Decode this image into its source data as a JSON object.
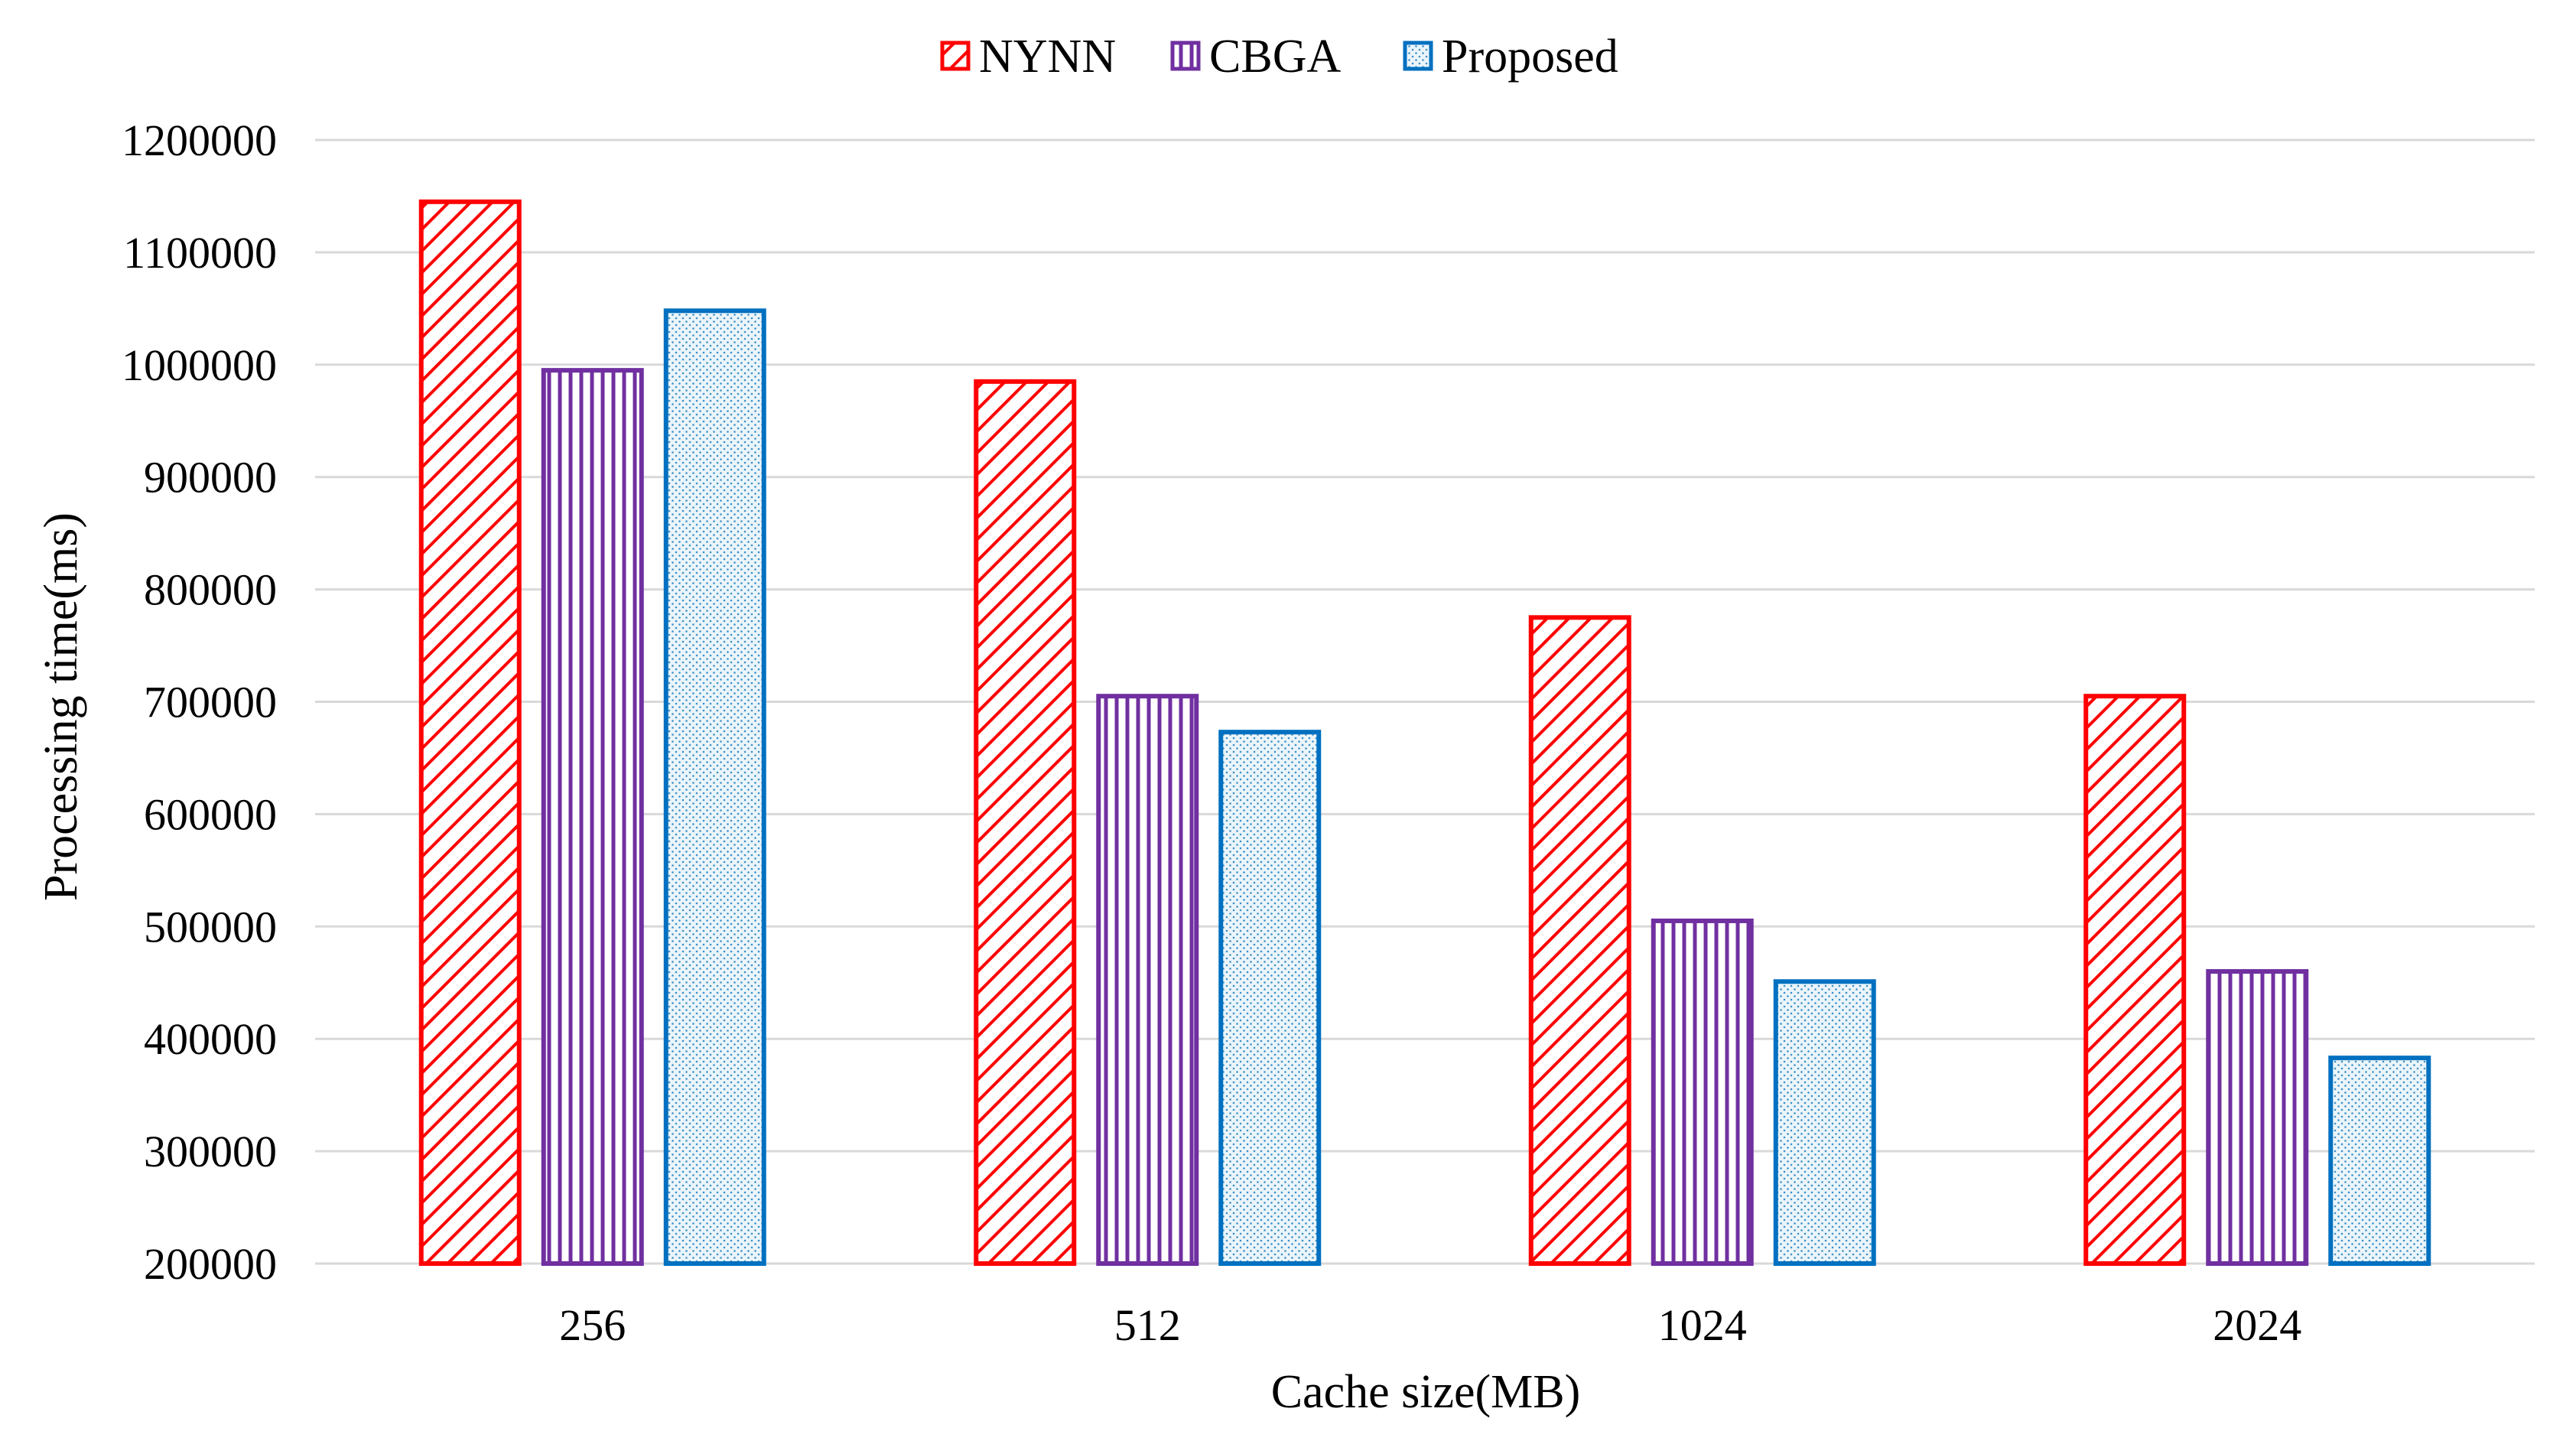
{
  "chart_data": {
    "type": "bar",
    "title": "",
    "xlabel": "Cache size(MB)",
    "ylabel": "Processing time(ms)",
    "categories": [
      "256",
      "512",
      "1024",
      "2024"
    ],
    "ylim": [
      200000,
      1200000
    ],
    "yticks": [
      200000,
      300000,
      400000,
      500000,
      600000,
      700000,
      800000,
      900000,
      1000000,
      1100000,
      1200000
    ],
    "grid": true,
    "legend_position": "top-center",
    "series": [
      {
        "name": "NYNN",
        "values": [
          1145000,
          985000,
          775000,
          705000
        ],
        "color": "#ff0000",
        "pattern": "diagonal-hatch"
      },
      {
        "name": "CBGA",
        "values": [
          995000,
          705000,
          505000,
          460000
        ],
        "color": "#7030a0",
        "pattern": "vertical-lines"
      },
      {
        "name": "Proposed",
        "values": [
          1048000,
          673000,
          451000,
          383000
        ],
        "color": "#0070c0",
        "pattern": "dots"
      }
    ]
  }
}
